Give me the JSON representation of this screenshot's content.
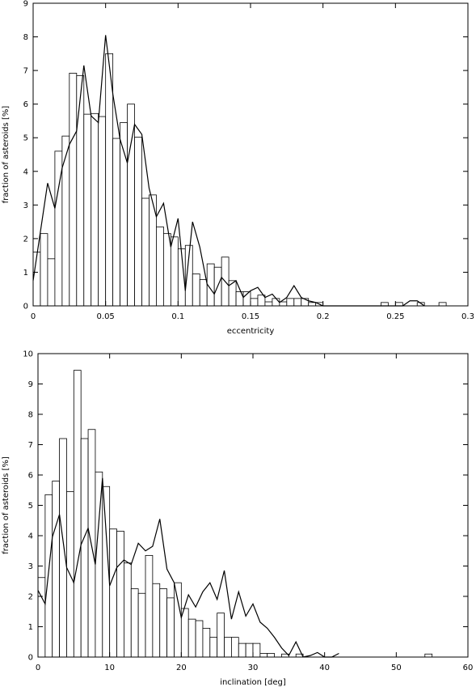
{
  "chart_data": [
    {
      "type": "bar",
      "xlabel": "eccentricity",
      "ylabel": "fraction of asteroids [%]",
      "xlim": [
        0,
        0.3
      ],
      "ylim": [
        0,
        9
      ],
      "xticks": [
        0,
        0.05,
        0.1,
        0.15,
        0.2,
        0.25,
        0.3
      ],
      "xtick_labels": [
        "0",
        "0.05",
        "0.1",
        "0.15",
        "0.2",
        "0.25",
        "0.3"
      ],
      "yticks": [
        0,
        1,
        2,
        3,
        4,
        5,
        6,
        7,
        8,
        9
      ],
      "ytick_labels": [
        "0",
        "1",
        "2",
        "3",
        "4",
        "5",
        "6",
        "7",
        "8",
        "9"
      ],
      "bin_width": 0.005,
      "series": [
        {
          "kind": "histogram",
          "bins": [
            [
              0.0,
              1.6
            ],
            [
              0.005,
              2.15
            ],
            [
              0.01,
              1.4
            ],
            [
              0.015,
              4.6
            ],
            [
              0.02,
              5.05
            ],
            [
              0.025,
              6.92
            ],
            [
              0.03,
              6.85
            ],
            [
              0.035,
              5.7
            ],
            [
              0.04,
              5.72
            ],
            [
              0.045,
              5.63
            ],
            [
              0.05,
              7.5
            ],
            [
              0.055,
              4.98
            ],
            [
              0.06,
              5.45
            ],
            [
              0.065,
              6.0
            ],
            [
              0.07,
              5.02
            ],
            [
              0.075,
              3.2
            ],
            [
              0.08,
              3.3
            ],
            [
              0.085,
              2.35
            ],
            [
              0.09,
              2.15
            ],
            [
              0.095,
              2.05
            ],
            [
              0.1,
              1.7
            ],
            [
              0.105,
              1.8
            ],
            [
              0.11,
              0.95
            ],
            [
              0.115,
              0.78
            ],
            [
              0.12,
              1.25
            ],
            [
              0.125,
              1.15
            ],
            [
              0.13,
              1.45
            ],
            [
              0.135,
              0.75
            ],
            [
              0.14,
              0.42
            ],
            [
              0.145,
              0.42
            ],
            [
              0.15,
              0.22
            ],
            [
              0.155,
              0.32
            ],
            [
              0.16,
              0.12
            ],
            [
              0.165,
              0.22
            ],
            [
              0.17,
              0.12
            ],
            [
              0.175,
              0.22
            ],
            [
              0.18,
              0.22
            ],
            [
              0.185,
              0.22
            ],
            [
              0.19,
              0.1
            ],
            [
              0.195,
              0.1
            ],
            [
              0.24,
              0.1
            ],
            [
              0.25,
              0.1
            ],
            [
              0.265,
              0.1
            ],
            [
              0.28,
              0.1
            ]
          ]
        },
        {
          "kind": "line",
          "x": [
            0.0,
            0.005,
            0.01,
            0.015,
            0.02,
            0.025,
            0.03,
            0.035,
            0.04,
            0.045,
            0.05,
            0.055,
            0.06,
            0.065,
            0.07,
            0.075,
            0.08,
            0.085,
            0.09,
            0.095,
            0.1,
            0.105,
            0.11,
            0.115,
            0.12,
            0.125,
            0.13,
            0.135,
            0.14,
            0.145,
            0.15,
            0.155,
            0.16,
            0.165,
            0.17,
            0.175,
            0.18,
            0.185,
            0.19,
            0.195,
            0.2,
            0.205,
            0.21,
            0.215,
            0.22,
            0.225,
            0.23,
            0.235,
            0.24,
            0.245,
            0.25,
            0.255,
            0.26,
            0.265,
            0.27
          ],
          "y": [
            0.75,
            2.2,
            3.65,
            2.9,
            4.1,
            4.8,
            5.2,
            7.15,
            5.65,
            5.45,
            8.05,
            6.3,
            4.95,
            4.25,
            5.4,
            5.1,
            3.5,
            2.65,
            3.05,
            1.75,
            2.6,
            0.45,
            2.5,
            1.75,
            0.65,
            0.35,
            0.85,
            0.6,
            0.75,
            0.25,
            0.45,
            0.55,
            0.25,
            0.35,
            0.1,
            0.25,
            0.6,
            0.25,
            0.15,
            0.1,
            0.0,
            0.0,
            0.0,
            0.0,
            0.0,
            0.0,
            0.0,
            0.0,
            0.0,
            0.0,
            0.0,
            0.0,
            0.15,
            0.15,
            0.0
          ]
        }
      ]
    },
    {
      "type": "bar",
      "xlabel": "inclination [deg]",
      "ylabel": "fraction of asteroids [%]",
      "xlim": [
        0,
        60
      ],
      "ylim": [
        0,
        10
      ],
      "xticks": [
        0,
        10,
        20,
        30,
        40,
        50,
        60
      ],
      "xtick_labels": [
        "0",
        "10",
        "20",
        "30",
        "40",
        "50",
        "60"
      ],
      "yticks": [
        0,
        1,
        2,
        3,
        4,
        5,
        6,
        7,
        8,
        9,
        10
      ],
      "ytick_labels": [
        "0",
        "1",
        "2",
        "3",
        "4",
        "5",
        "6",
        "7",
        "8",
        "9",
        "10"
      ],
      "bin_width": 1,
      "series": [
        {
          "kind": "histogram",
          "bins": [
            [
              0,
              2.62
            ],
            [
              1,
              5.35
            ],
            [
              2,
              5.8
            ],
            [
              3,
              7.2
            ],
            [
              4,
              5.45
            ],
            [
              5,
              9.45
            ],
            [
              6,
              7.2
            ],
            [
              7,
              7.5
            ],
            [
              8,
              6.1
            ],
            [
              9,
              5.62
            ],
            [
              10,
              4.22
            ],
            [
              11,
              4.15
            ],
            [
              12,
              3.1
            ],
            [
              13,
              2.25
            ],
            [
              14,
              2.1
            ],
            [
              15,
              3.35
            ],
            [
              16,
              2.42
            ],
            [
              17,
              2.25
            ],
            [
              18,
              1.95
            ],
            [
              19,
              2.45
            ],
            [
              20,
              1.6
            ],
            [
              21,
              1.25
            ],
            [
              22,
              1.2
            ],
            [
              23,
              0.95
            ],
            [
              24,
              0.65
            ],
            [
              25,
              1.45
            ],
            [
              26,
              0.65
            ],
            [
              27,
              0.65
            ],
            [
              28,
              0.45
            ],
            [
              29,
              0.45
            ],
            [
              30,
              0.45
            ],
            [
              31,
              0.12
            ],
            [
              32,
              0.12
            ],
            [
              34,
              0.1
            ],
            [
              36,
              0.1
            ],
            [
              54,
              0.1
            ]
          ]
        },
        {
          "kind": "line",
          "x": [
            0,
            1,
            2,
            3,
            4,
            5,
            6,
            7,
            8,
            9,
            10,
            11,
            12,
            13,
            14,
            15,
            16,
            17,
            18,
            19,
            20,
            21,
            22,
            23,
            24,
            25,
            26,
            27,
            28,
            29,
            30,
            31,
            32,
            33,
            34,
            35,
            36,
            37,
            38,
            39,
            40,
            41,
            42
          ],
          "y": [
            2.2,
            1.75,
            3.95,
            4.7,
            2.95,
            2.45,
            3.7,
            4.25,
            3.05,
            5.9,
            2.35,
            2.95,
            3.2,
            3.05,
            3.75,
            3.5,
            3.65,
            4.55,
            2.9,
            2.45,
            1.3,
            2.05,
            1.65,
            2.15,
            2.45,
            1.9,
            2.85,
            1.25,
            2.15,
            1.35,
            1.75,
            1.15,
            0.95,
            0.65,
            0.3,
            0.05,
            0.5,
            0.0,
            0.05,
            0.15,
            0.0,
            0.0,
            0.12
          ]
        }
      ]
    }
  ]
}
